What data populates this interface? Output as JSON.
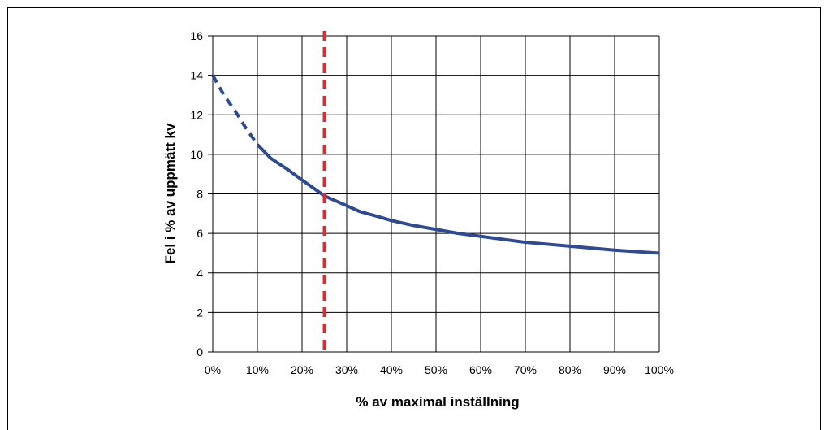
{
  "chart_data": {
    "type": "line",
    "title": "",
    "xlabel": "% av maximal inställning",
    "ylabel": "Fel i % av uppmätt kv",
    "xlim": [
      0,
      100
    ],
    "ylim": [
      0,
      16
    ],
    "grid": true,
    "x_ticks": [
      0,
      10,
      20,
      30,
      40,
      50,
      60,
      70,
      80,
      90,
      100
    ],
    "x_tick_labels": [
      "0%",
      "10%",
      "20%",
      "30%",
      "40%",
      "50%",
      "60%",
      "70%",
      "80%",
      "90%",
      "100%"
    ],
    "y_ticks": [
      0,
      2,
      4,
      6,
      8,
      10,
      12,
      14,
      16
    ],
    "y_tick_labels": [
      "0",
      "2",
      "4",
      "6",
      "8",
      "10",
      "12",
      "14",
      "16"
    ],
    "series": [
      {
        "style": "dashed",
        "color": "#2e4a94",
        "x": [
          0,
          2.5,
          5,
          7.5,
          10
        ],
        "y": [
          14.0,
          13.0,
          12.2,
          11.3,
          10.5
        ]
      },
      {
        "style": "solid",
        "color": "#2e4a94",
        "x": [
          10,
          13,
          17,
          20,
          25,
          30,
          33,
          37,
          40,
          45,
          50,
          55,
          60,
          70,
          80,
          90,
          100
        ],
        "y": [
          10.5,
          9.8,
          9.2,
          8.7,
          7.9,
          7.4,
          7.1,
          6.85,
          6.65,
          6.4,
          6.2,
          6.0,
          5.85,
          5.55,
          5.35,
          5.15,
          5.0
        ]
      }
    ],
    "reference_line": {
      "orientation": "vertical",
      "x": 25,
      "color": "#e8262c",
      "style": "dashed"
    }
  }
}
